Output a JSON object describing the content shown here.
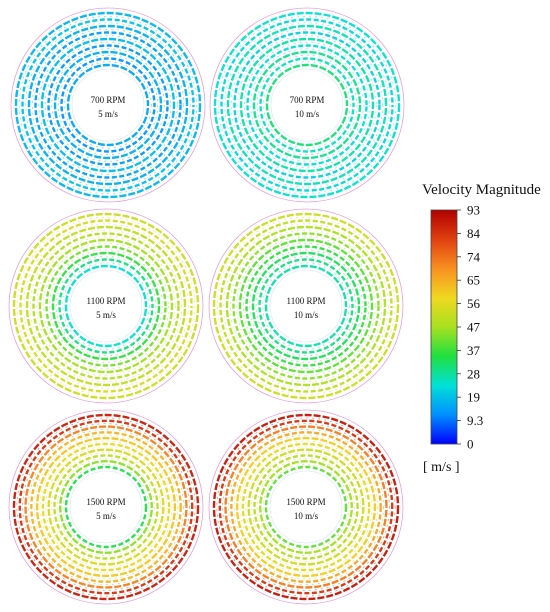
{
  "panels": [
    {
      "speed": "700 RPM",
      "inlet": "5 m/s",
      "rings": [
        17,
        19,
        16,
        14,
        18,
        13,
        16,
        12,
        15
      ]
    },
    {
      "speed": "700 RPM",
      "inlet": "10 m/s",
      "rings": [
        24,
        22,
        26,
        21,
        27,
        23,
        29,
        25,
        31
      ]
    },
    {
      "speed": "1100 RPM",
      "inlet": "5 m/s",
      "rings": [
        52,
        54,
        50,
        48,
        46,
        42,
        36,
        30,
        24
      ]
    },
    {
      "speed": "1100 RPM",
      "inlet": "10 m/s",
      "rings": [
        52,
        50,
        47,
        44,
        40,
        36,
        33,
        30,
        27
      ]
    },
    {
      "speed": "1500 RPM",
      "inlet": "5 m/s",
      "rings": [
        88,
        84,
        72,
        64,
        61,
        57,
        54,
        50,
        44,
        34
      ]
    },
    {
      "speed": "1500 RPM",
      "inlet": "10 m/s",
      "rings": [
        89,
        84,
        73,
        66,
        60,
        56,
        52,
        49,
        46,
        40
      ]
    }
  ],
  "legend": {
    "title": "Velocity Magnitude",
    "min": 0,
    "max": 93,
    "ticks": [
      "93",
      "84",
      "74",
      "65",
      "56",
      "47",
      "37",
      "28",
      "19",
      "9.3",
      "0"
    ],
    "unit": "[ m/s ]",
    "colormap": [
      "#0000ff",
      "#0090ff",
      "#00e0d8",
      "#20e040",
      "#a8e020",
      "#f0d820",
      "#f89020",
      "#e04010",
      "#b00000"
    ]
  }
}
